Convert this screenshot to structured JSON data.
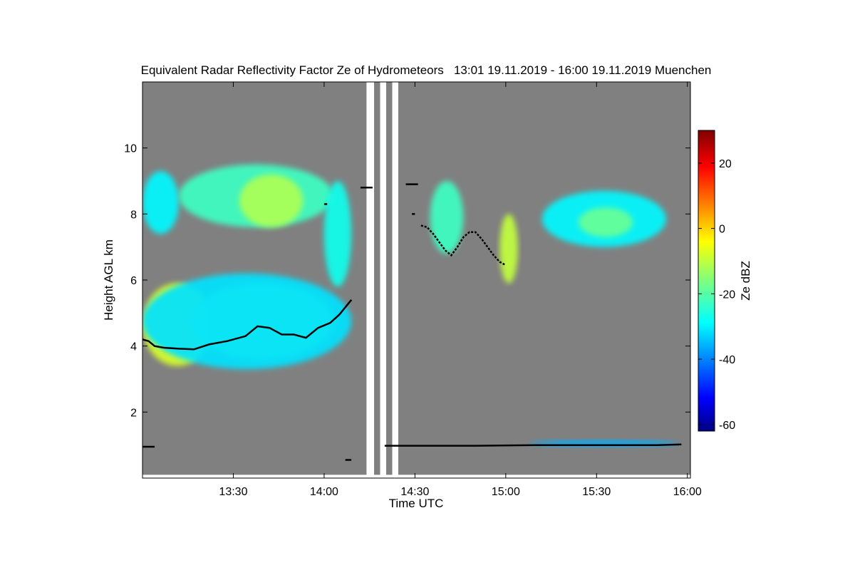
{
  "chart_data": {
    "type": "heatmap",
    "title": "Equivalent Radar Reflectivity Factor Ze of Hydrometeors   13:01 19.11.2019 - 16:00 19.11.2019 Muenchen",
    "xlabel": "Time UTC",
    "ylabel": "Height AGL km",
    "x_range": [
      "13:01",
      "16:00"
    ],
    "xlim_minutes_utc": [
      780,
      961
    ],
    "ylim": [
      0,
      12
    ],
    "x_ticks": [
      {
        "value": 810,
        "label": "13:30"
      },
      {
        "value": 840,
        "label": "14:00"
      },
      {
        "value": 870,
        "label": "14:30"
      },
      {
        "value": 900,
        "label": "15:00"
      },
      {
        "value": 930,
        "label": "15:30"
      },
      {
        "value": 960,
        "label": "16:00"
      }
    ],
    "y_ticks": [
      {
        "value": 2,
        "label": "2"
      },
      {
        "value": 4,
        "label": "4"
      },
      {
        "value": 6,
        "label": "6"
      },
      {
        "value": 8,
        "label": "8"
      },
      {
        "value": 10,
        "label": "10"
      }
    ],
    "colorbar": {
      "label": "Ze dBZ",
      "range": [
        -62,
        30
      ],
      "ticks": [
        {
          "value": 20,
          "label": "20"
        },
        {
          "value": 0,
          "label": "0"
        },
        {
          "value": -20,
          "label": "-20"
        },
        {
          "value": -40,
          "label": "-40"
        },
        {
          "value": -60,
          "label": "-60"
        }
      ],
      "colormap": "jet"
    },
    "colors": {
      "no_signal": "#808080",
      "missing_data": "#ffffff",
      "marker": "#000000"
    },
    "missing_data_intervals_min": [
      [
        854,
        856.5
      ],
      [
        858.5,
        860.5
      ],
      [
        862.5,
        864.5
      ]
    ],
    "cloud_features": [
      {
        "name": "lower_layer_core",
        "t": [
          781,
          796
        ],
        "z": [
          3.9,
          5.1
        ],
        "ze": 8
      },
      {
        "name": "lower_layer_west",
        "t": [
          780,
          803
        ],
        "z": [
          3.4,
          5.9
        ],
        "ze": -8
      },
      {
        "name": "lower_layer_east",
        "t": [
          796,
          843
        ],
        "z": [
          3.6,
          5.9
        ],
        "ze": -16
      },
      {
        "name": "lower_layer_edge",
        "t": [
          780,
          849
        ],
        "z": [
          3.3,
          6.2
        ],
        "ze": -30
      },
      {
        "name": "upper_layer_1",
        "t": [
          780,
          792
        ],
        "z": [
          7.4,
          9.3
        ],
        "ze": -28
      },
      {
        "name": "upper_layer_2",
        "t": [
          792,
          843
        ],
        "z": [
          7.6,
          9.5
        ],
        "ze": -22
      },
      {
        "name": "upper_layer_3",
        "t": [
          812,
          833
        ],
        "z": [
          7.6,
          9.2
        ],
        "ze": -12
      },
      {
        "name": "fallstreak",
        "t": [
          840,
          849
        ],
        "z": [
          5.8,
          9.0
        ],
        "ze": -26
      },
      {
        "name": "cloud_1445",
        "t": [
          875,
          886
        ],
        "z": [
          6.8,
          9.0
        ],
        "ze": -22
      },
      {
        "name": "cloud_1500",
        "t": [
          898,
          904
        ],
        "z": [
          5.9,
          8.0
        ],
        "ze": -10
      },
      {
        "name": "upper_layer_1530",
        "t": [
          912,
          953
        ],
        "z": [
          7.0,
          8.7
        ],
        "ze": -28
      },
      {
        "name": "upper_layer_1530_core",
        "t": [
          924,
          942
        ],
        "z": [
          7.3,
          8.2
        ],
        "ze": -18
      },
      {
        "name": "low_layer_1530",
        "t": [
          908,
          957
        ],
        "z": [
          0.95,
          1.15
        ],
        "ze": -35
      }
    ],
    "marker_line_1": {
      "t": [
        780,
        782,
        784,
        787,
        792,
        797,
        802,
        808,
        814,
        818,
        822,
        826,
        830,
        834,
        838,
        842,
        845,
        849
      ],
      "z": [
        4.2,
        4.15,
        4.0,
        3.95,
        3.92,
        3.9,
        4.05,
        4.15,
        4.3,
        4.6,
        4.55,
        4.35,
        4.35,
        4.25,
        4.55,
        4.7,
        4.95,
        5.4
      ]
    },
    "marker_line_2": {
      "t": [
        872,
        874,
        876,
        878,
        880,
        882,
        884,
        886,
        888,
        890,
        892,
        894,
        896,
        898,
        900
      ],
      "z": [
        7.65,
        7.6,
        7.4,
        7.15,
        6.9,
        6.75,
        7.0,
        7.3,
        7.45,
        7.45,
        7.25,
        7.0,
        6.75,
        6.55,
        6.45
      ]
    },
    "marker_line_3": {
      "t": [
        860,
        870,
        890,
        910,
        930,
        950,
        958
      ],
      "z": [
        0.98,
        0.98,
        0.98,
        1.0,
        1.0,
        1.0,
        1.02
      ]
    },
    "marker_dashes": [
      {
        "t": [
          780,
          784
        ],
        "z": 0.95
      },
      {
        "t": [
          840,
          841
        ],
        "z": 8.3
      },
      {
        "t": [
          847,
          849
        ],
        "z": 0.55
      },
      {
        "t": [
          852,
          856
        ],
        "z": 8.8
      },
      {
        "t": [
          867,
          871
        ],
        "z": 8.9
      },
      {
        "t": [
          869,
          870
        ],
        "z": 8.0
      }
    ]
  }
}
